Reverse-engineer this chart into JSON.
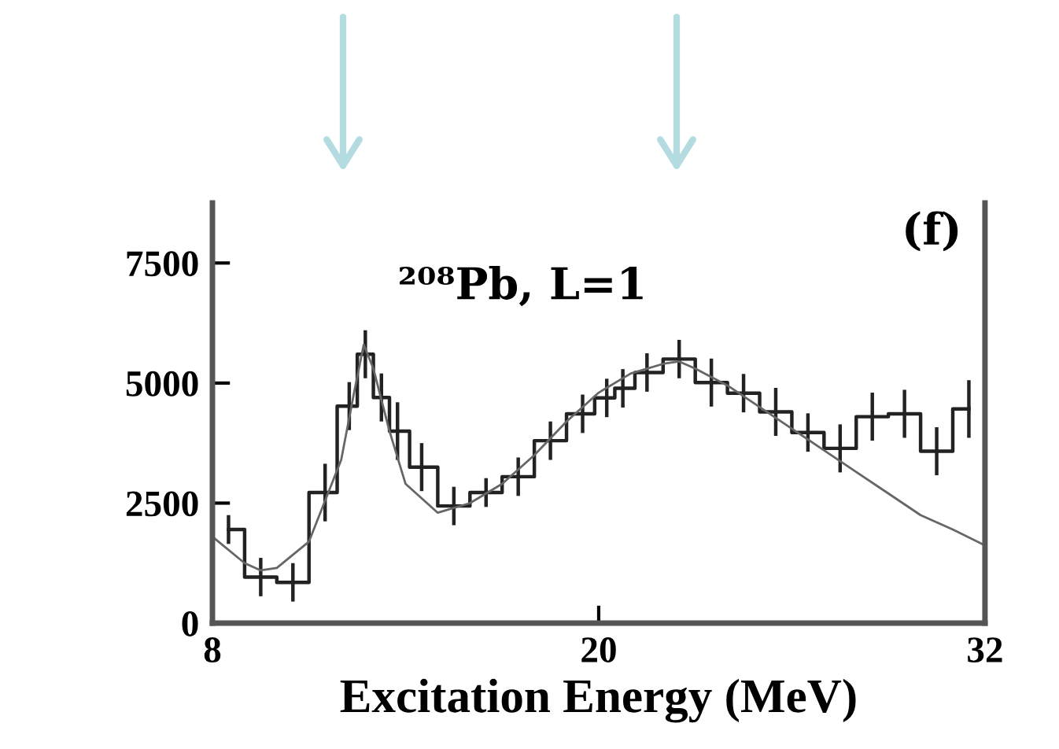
{
  "chart_data": {
    "type": "step",
    "xlabel": "Excitation Energy (MeV)",
    "annotations": [
      "²⁰⁸Pb, L=1",
      "(f)"
    ],
    "xlim": [
      8,
      32
    ],
    "xticks": [
      8,
      20,
      32
    ],
    "ylim": [
      0,
      8750
    ],
    "yticks": [
      0,
      2500,
      5000,
      7500
    ],
    "grid": false,
    "legend": false,
    "series": [
      {
        "color": "#222222",
        "x": [
          8.5,
          9.5,
          10.5,
          11.5,
          12.25,
          12.75,
          13.25,
          13.75,
          14.5,
          15.5,
          16.5,
          17.5,
          18.5,
          19.5,
          20.25,
          20.75,
          21.5,
          22.5,
          23.5,
          24.5,
          25.5,
          26.5,
          27.5,
          28.5,
          29.5,
          30.5,
          31.5
        ],
        "values": [
          1950,
          960,
          850,
          2720,
          4520,
          5600,
          4700,
          4000,
          3250,
          2440,
          2720,
          3050,
          3800,
          4360,
          4690,
          4890,
          5220,
          5500,
          5010,
          4790,
          4400,
          3970,
          3640,
          4300,
          4360,
          3580,
          4460
        ],
        "errors": [
          300,
          400,
          400,
          600,
          500,
          500,
          500,
          600,
          500,
          400,
          300,
          400,
          400,
          400,
          400,
          400,
          400,
          400,
          500,
          400,
          500,
          400,
          500,
          500,
          500,
          500,
          600
        ]
      },
      {
        "type": "line",
        "color": "#666666",
        "x": [
          8,
          9,
          9.5,
          10,
          11,
          12,
          12.4,
          12.7,
          13,
          13.5,
          14,
          15,
          16,
          17,
          18,
          19,
          20,
          21,
          22,
          22.5,
          23,
          24,
          25,
          26,
          27,
          28,
          29,
          30,
          31,
          32
        ],
        "values": [
          1800,
          1250,
          1100,
          1150,
          1700,
          3400,
          4800,
          5800,
          5300,
          4000,
          2900,
          2300,
          2500,
          2900,
          3500,
          4200,
          4800,
          5200,
          5400,
          5450,
          5300,
          4950,
          4500,
          4050,
          3600,
          3150,
          2700,
          2250,
          1950,
          1620
        ]
      }
    ]
  }
}
